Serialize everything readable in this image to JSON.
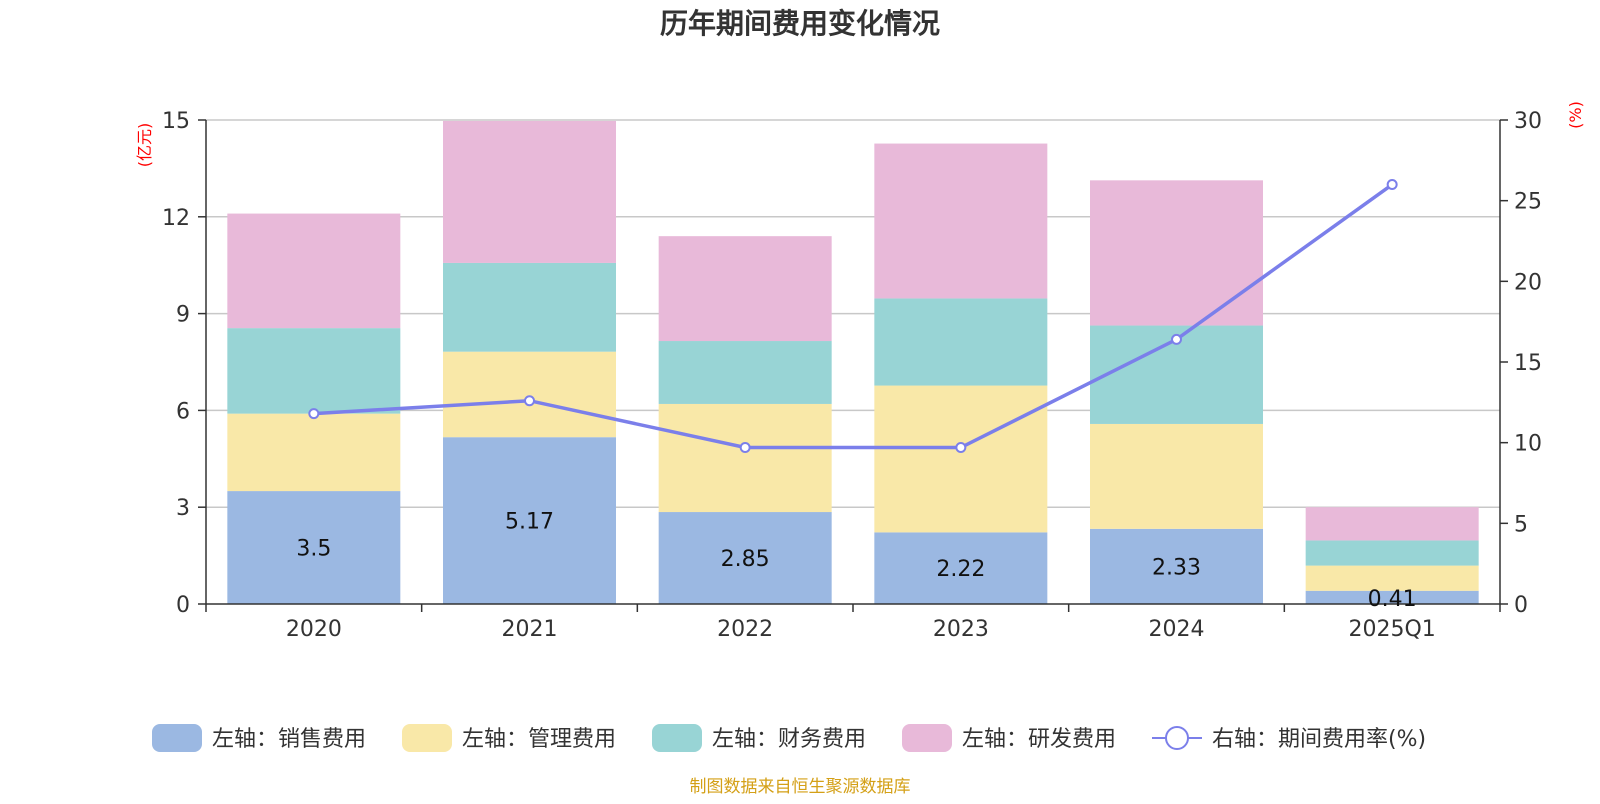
{
  "chart_data": {
    "type": "bar",
    "title": "历年期间费用变化情况",
    "categories": [
      "2020",
      "2021",
      "2022",
      "2023",
      "2024",
      "2025Q1"
    ],
    "left_axis": {
      "unit": "(亿元)",
      "ylim": [
        0,
        15
      ],
      "ticks": [
        "0",
        "3",
        "6",
        "9",
        "12",
        "15"
      ]
    },
    "right_axis": {
      "unit": "(%)",
      "ylim": [
        0,
        30
      ],
      "ticks": [
        "0",
        "5",
        "10",
        "15",
        "20",
        "25",
        "30"
      ]
    },
    "series": [
      {
        "name": "左轴：销售费用",
        "type": "bar",
        "axis": "left",
        "color": "#9bb8e2",
        "values": [
          3.5,
          5.17,
          2.85,
          2.22,
          2.33,
          0.41
        ],
        "labels": [
          "3.5",
          "5.17",
          "2.85",
          "2.22",
          "2.33",
          "0.41"
        ]
      },
      {
        "name": "左轴：管理费用",
        "type": "bar",
        "axis": "left",
        "color": "#f9e8a8",
        "values": [
          2.4,
          2.65,
          3.35,
          4.55,
          3.25,
          0.78
        ]
      },
      {
        "name": "左轴：财务费用",
        "type": "bar",
        "axis": "left",
        "color": "#98d4d5",
        "values": [
          2.65,
          2.75,
          1.95,
          2.7,
          3.05,
          0.78
        ]
      },
      {
        "name": "左轴：研发费用",
        "type": "bar",
        "axis": "left",
        "color": "#e8b9d9",
        "values": [
          3.55,
          4.4,
          3.25,
          4.8,
          4.5,
          1.03
        ]
      },
      {
        "name": "右轴：期间费用率(%)",
        "type": "line",
        "axis": "right",
        "color": "#7b7fea",
        "values": [
          11.8,
          12.6,
          9.7,
          9.7,
          16.4,
          26.0
        ]
      }
    ],
    "grid": true,
    "legend_position": "bottom"
  },
  "source": "制图数据来自恒生聚源数据库"
}
